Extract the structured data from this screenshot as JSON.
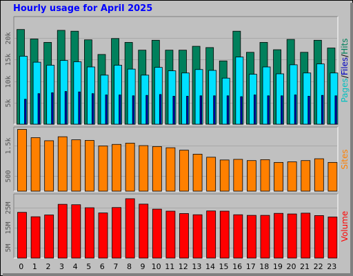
{
  "title": "Hourly usage for April 2025",
  "colors": {
    "hits": "#00805c",
    "files": "#00e0ff",
    "pages": "#0000c0",
    "sites": "#ff8000",
    "volume": "#ff0000",
    "pagesLabel": "#00c0c0"
  },
  "side_labels": {
    "pages": "Pages",
    "files": "Files",
    "hits": "Hits",
    "sep": "/",
    "sites": "Sites",
    "volume": "Volume"
  },
  "chart_data": [
    {
      "type": "bar",
      "name": "hits-files-pages",
      "categories": [
        "0",
        "1",
        "2",
        "3",
        "4",
        "5",
        "6",
        "7",
        "8",
        "9",
        "10",
        "11",
        "12",
        "13",
        "14",
        "15",
        "16",
        "17",
        "18",
        "19",
        "20",
        "21",
        "22",
        "23"
      ],
      "series": [
        {
          "name": "Hits",
          "values": [
            22000,
            19800,
            19000,
            21800,
            21600,
            19600,
            16200,
            19900,
            19000,
            17200,
            19500,
            17200,
            17200,
            18100,
            17800,
            14700,
            21600,
            16700,
            19000,
            17300,
            19700,
            16700,
            19500,
            17700
          ]
        },
        {
          "name": "Files",
          "values": [
            15800,
            14400,
            13700,
            14800,
            14500,
            13300,
            11400,
            13700,
            12800,
            11400,
            13200,
            12400,
            11900,
            12700,
            12500,
            10700,
            15600,
            11600,
            13300,
            11700,
            13800,
            11900,
            14000,
            11900
          ]
        },
        {
          "name": "Pages",
          "values": [
            5800,
            7100,
            7300,
            7600,
            7500,
            7100,
            6800,
            6800,
            6600,
            6700,
            6900,
            6500,
            6500,
            6600,
            6600,
            6600,
            6400,
            6800,
            6600,
            6600,
            6800,
            6500,
            6700,
            6600
          ]
        }
      ],
      "yticks": [
        {
          "v": 5000,
          "label": "5k"
        },
        {
          "v": 10000,
          "label": "10k"
        },
        {
          "v": 15000,
          "label": "15k"
        },
        {
          "v": 20000,
          "label": "20k"
        }
      ],
      "ylim": [
        0,
        25000
      ]
    },
    {
      "type": "bar",
      "name": "sites",
      "categories": [
        "0",
        "1",
        "2",
        "3",
        "4",
        "5",
        "6",
        "7",
        "8",
        "9",
        "10",
        "11",
        "12",
        "13",
        "14",
        "15",
        "16",
        "17",
        "18",
        "19",
        "20",
        "21",
        "22",
        "23"
      ],
      "series": [
        {
          "name": "Sites",
          "values": [
            2020,
            1750,
            1650,
            1780,
            1680,
            1660,
            1480,
            1530,
            1570,
            1490,
            1460,
            1420,
            1340,
            1210,
            1110,
            1020,
            1040,
            1000,
            1030,
            940,
            960,
            1000,
            1060,
            940
          ]
        }
      ],
      "yticks": [
        {
          "v": 500,
          "label": "500"
        },
        {
          "v": 1500,
          "label": "1.5k"
        }
      ],
      "ylim": [
        0,
        2100
      ]
    },
    {
      "type": "bar",
      "name": "volume",
      "categories": [
        "0",
        "1",
        "2",
        "3",
        "4",
        "5",
        "6",
        "7",
        "8",
        "9",
        "10",
        "11",
        "12",
        "13",
        "14",
        "15",
        "16",
        "17",
        "18",
        "19",
        "20",
        "21",
        "22",
        "23"
      ],
      "series": [
        {
          "name": "Volume",
          "values": [
            22800000,
            20600000,
            21500000,
            26800000,
            26600000,
            25100000,
            22500000,
            25200000,
            29600000,
            26900000,
            24400000,
            23400000,
            22200000,
            21600000,
            23500000,
            23400000,
            21600000,
            21300000,
            21300000,
            22300000,
            22000000,
            22400000,
            21200000,
            20500000
          ]
        }
      ],
      "yticks": [
        {
          "v": 5000000,
          "label": "5M"
        },
        {
          "v": 15000000,
          "label": "15M"
        },
        {
          "v": 25000000,
          "label": "25M"
        }
      ],
      "ylim": [
        0,
        32000000
      ]
    }
  ]
}
